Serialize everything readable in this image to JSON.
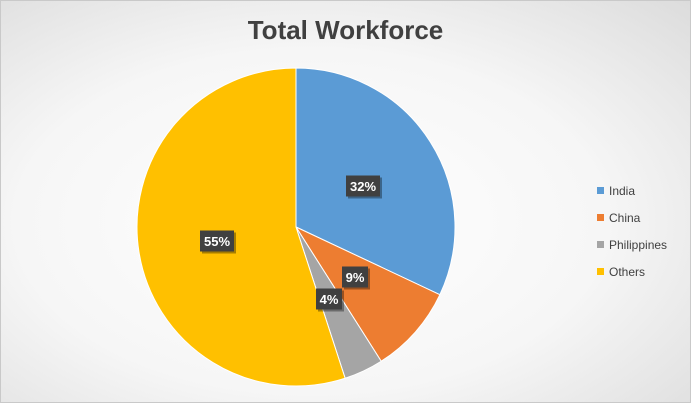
{
  "chart_data": {
    "type": "pie",
    "title": "Total Workforce",
    "categories": [
      "India",
      "China",
      "Philippines",
      "Others"
    ],
    "values": [
      32,
      9,
      4,
      55
    ],
    "labels": [
      "32%",
      "9%",
      "4%",
      "55%"
    ],
    "colors": [
      "#5b9bd5",
      "#ed7d31",
      "#a5a5a5",
      "#ffc000"
    ],
    "legend_position": "right"
  }
}
